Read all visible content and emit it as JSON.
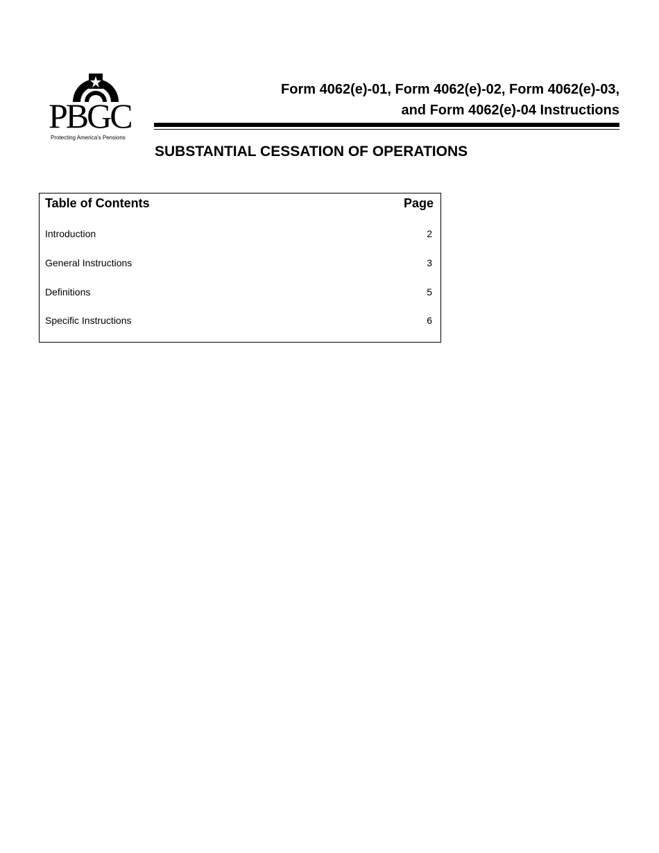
{
  "logo": {
    "text": "PBGC",
    "tagline": "Protecting America's Pensions"
  },
  "header": {
    "title_line1": "Form 4062(e)-01, Form 4062(e)-02, Form 4062(e)-03,",
    "title_line2": "and Form 4062(e)-04 Instructions",
    "subtitle": "SUBSTANTIAL CESSATION OF OPERATIONS"
  },
  "toc": {
    "heading": "Table of Contents",
    "page_heading": "Page",
    "entries": [
      {
        "label": "Introduction",
        "page": "2"
      },
      {
        "label": "General Instructions",
        "page": "3"
      },
      {
        "label": "Definitions",
        "page": "5"
      },
      {
        "label": "Specific Instructions",
        "page": "6"
      }
    ]
  }
}
